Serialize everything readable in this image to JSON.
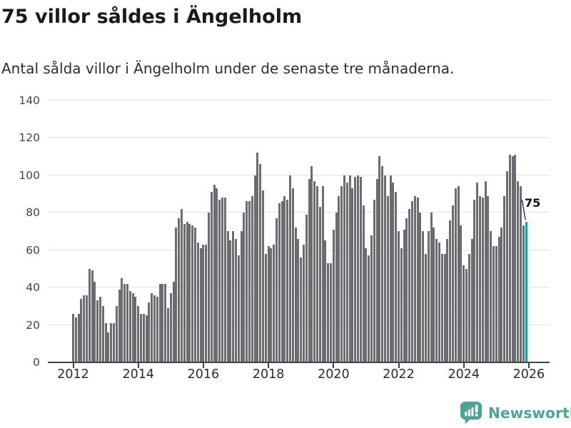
{
  "header": {
    "title": "75 villor såldes i Ängelholm",
    "subtitle": "Antal sålda villor i Ängelholm under de senaste tre månaderna."
  },
  "chart_data": {
    "type": "bar",
    "title": "75 villor såldes i Ängelholm",
    "subtitle": "Antal sålda villor i Ängelholm under de senaste tre månaderna.",
    "x_start": "2012-01",
    "x_end": "2025-12",
    "frequency": "monthly",
    "values": [
      26,
      24,
      26,
      34,
      36,
      36,
      50,
      49,
      43,
      33,
      35,
      30,
      21,
      16,
      21,
      21,
      30,
      39,
      45,
      42,
      42,
      38,
      37,
      35,
      30,
      26,
      26,
      25,
      32,
      37,
      36,
      35,
      42,
      42,
      42,
      29,
      37,
      43,
      72,
      77,
      82,
      74,
      75,
      74,
      73,
      72,
      64,
      61,
      63,
      63,
      80,
      91,
      95,
      93,
      87,
      88,
      88,
      70,
      65,
      70,
      66,
      57,
      70,
      80,
      86,
      86,
      89,
      100,
      112,
      106,
      92,
      58,
      62,
      61,
      63,
      77,
      85,
      86,
      89,
      87,
      100,
      93,
      72,
      66,
      56,
      63,
      79,
      98,
      105,
      97,
      94,
      83,
      94,
      65,
      53,
      53,
      71,
      80,
      89,
      94,
      100,
      96,
      100,
      93,
      99,
      100,
      99,
      84,
      61,
      57,
      68,
      87,
      98,
      110,
      105,
      100,
      89,
      100,
      96,
      91,
      70,
      61,
      71,
      77,
      82,
      86,
      89,
      88,
      80,
      70,
      58,
      70,
      80,
      72,
      66,
      64,
      58,
      58,
      66,
      76,
      84,
      93,
      94,
      73,
      52,
      50,
      58,
      66,
      87,
      96,
      89,
      88,
      97,
      89,
      70,
      62,
      62,
      67,
      72,
      89,
      102,
      111,
      110,
      111,
      97,
      94,
      73,
      75
    ],
    "highlight_index": 167,
    "highlight_value": 75,
    "annotation": {
      "label": "75"
    },
    "ylim": [
      0,
      140
    ],
    "yticks": [
      0,
      20,
      40,
      60,
      80,
      100,
      120,
      140
    ],
    "xticks": [
      2012,
      2014,
      2016,
      2018,
      2020,
      2022,
      2024,
      2026
    ],
    "grid": "horizontal",
    "legend": "none",
    "colors": {
      "bar": "#6b6b72",
      "highlight": "#0fa3a1",
      "gridline": "#e2e2e2",
      "axis": "#424242"
    }
  },
  "footer": {
    "brand": "Newsworthy",
    "brand_color": "#4ba497"
  }
}
